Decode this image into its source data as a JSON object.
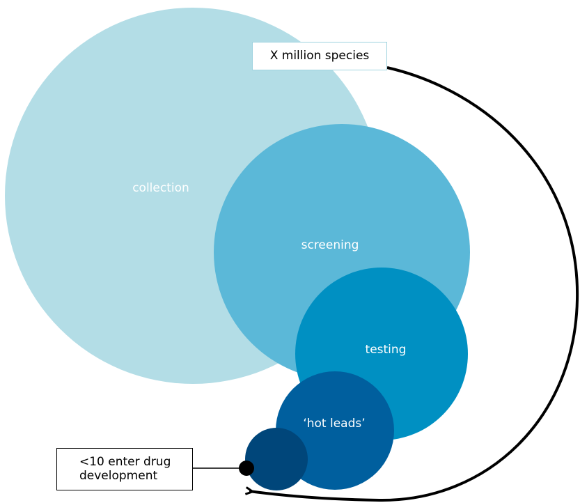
{
  "diagram": {
    "top_box_label": "X million species",
    "bottom_box_line1": "<10 enter drug",
    "bottom_box_line2": "development",
    "circles": [
      {
        "name": "collection",
        "label": "collection",
        "color": "#b3dde6"
      },
      {
        "name": "screening",
        "label": "screening",
        "color": "#5bb8d8"
      },
      {
        "name": "testing",
        "label": "testing",
        "color": "#0090c2"
      },
      {
        "name": "hot-leads",
        "label": "‘hot leads’",
        "color": "#005f9e"
      },
      {
        "name": "final",
        "label": "",
        "color": "#00467a"
      }
    ],
    "arrow_color": "#000000"
  }
}
